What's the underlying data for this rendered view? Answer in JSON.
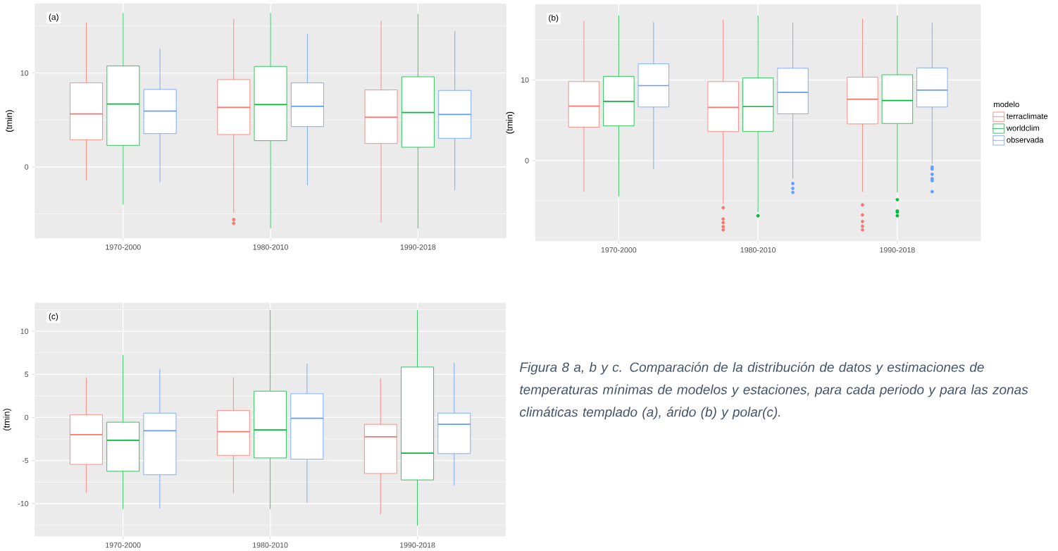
{
  "chart_data": [
    {
      "type": "box",
      "categories": [
        "1970-2000",
        "1980-2010",
        "1990-2018"
      ],
      "ylabel": "(tmin)",
      "ylim": [
        -7.6,
        17.4
      ],
      "yticks": [
        0,
        10
      ],
      "grid": true,
      "annotations": [
        "(a)"
      ],
      "series": [
        {
          "color": "#f8766d",
          "boxes": [
            {
              "low": -1.45,
              "q1": 2.9,
              "median": 5.65,
              "q3": 8.95,
              "high": 15.4
            },
            {
              "low": -4.9,
              "q1": 3.45,
              "median": 6.35,
              "q3": 9.3,
              "high": 15.75,
              "outliers": [
                -5.6,
                -6.0
              ]
            },
            {
              "low": -5.9,
              "q1": 2.5,
              "median": 5.3,
              "q3": 8.2,
              "high": 15.55
            }
          ]
        },
        {
          "color": "#00ba38",
          "boxes": [
            {
              "low": -4.0,
              "q1": 2.3,
              "median": 6.7,
              "q3": 10.75,
              "high": 16.4
            },
            {
              "low": -6.55,
              "q1": 2.8,
              "median": 6.65,
              "q3": 10.7,
              "high": 16.4
            },
            {
              "low": -6.55,
              "q1": 2.1,
              "median": 5.8,
              "q3": 9.6,
              "high": 16.3
            }
          ]
        },
        {
          "color": "#619cff",
          "boxes": [
            {
              "low": -1.65,
              "q1": 3.55,
              "median": 5.95,
              "q3": 8.25,
              "high": 12.6
            },
            {
              "low": -1.95,
              "q1": 4.3,
              "median": 6.45,
              "q3": 8.95,
              "high": 14.15
            },
            {
              "low": -2.5,
              "q1": 3.05,
              "median": 5.6,
              "q3": 8.15,
              "high": 14.45
            }
          ]
        }
      ]
    },
    {
      "type": "box",
      "categories": [
        "1970-2000",
        "1980-2010",
        "1990-2018"
      ],
      "ylabel": "(tmin)",
      "ylim": [
        -10,
        19.4
      ],
      "yticks": [
        0,
        10
      ],
      "grid": true,
      "annotations": [
        "(b)"
      ],
      "legend": "right",
      "legend_title": "modelo",
      "series": [
        {
          "name": "terraclimate",
          "color": "#f8766d",
          "boxes": [
            {
              "low": -3.9,
              "q1": 4.15,
              "median": 6.75,
              "q3": 9.8,
              "high": 17.3
            },
            {
              "low": -5.35,
              "q1": 3.6,
              "median": 6.6,
              "q3": 9.8,
              "high": 17.5,
              "outliers": [
                -5.85,
                -7.25,
                -7.7,
                -8.2,
                -8.6
              ]
            },
            {
              "low": -3.9,
              "q1": 4.55,
              "median": 7.6,
              "q3": 10.35,
              "high": 17.6,
              "outliers": [
                -5.5,
                -6.75,
                -7.55,
                -8.15,
                -8.6
              ]
            }
          ]
        },
        {
          "name": "worldclim",
          "color": "#00ba38",
          "boxes": [
            {
              "low": -4.45,
              "q1": 4.3,
              "median": 7.35,
              "q3": 10.45,
              "high": 18.0
            },
            {
              "low": -6.4,
              "q1": 3.6,
              "median": 6.7,
              "q3": 10.25,
              "high": 18.0,
              "outliers": [
                -6.85
              ]
            },
            {
              "low": -3.95,
              "q1": 4.6,
              "median": 7.45,
              "q3": 10.65,
              "high": 18.0,
              "outliers": [
                -4.85,
                -6.25,
                -6.4,
                -6.85
              ]
            }
          ]
        },
        {
          "name": "observada",
          "color": "#619cff",
          "boxes": [
            {
              "low": -1.1,
              "q1": 6.65,
              "median": 9.3,
              "q3": 12.0,
              "high": 17.2
            },
            {
              "low": -2.25,
              "q1": 5.8,
              "median": 8.45,
              "q3": 11.45,
              "high": 17.1,
              "outliers": [
                -2.85,
                -3.45,
                -3.95
              ]
            },
            {
              "low": -0.4,
              "q1": 6.65,
              "median": 8.75,
              "q3": 11.5,
              "high": 17.1,
              "outliers": [
                -0.8,
                -1.05,
                -1.7,
                -2.25,
                -2.5,
                -3.85
              ]
            }
          ]
        }
      ]
    },
    {
      "type": "box",
      "categories": [
        "1970-2000",
        "1980-2010",
        "1990-2018"
      ],
      "ylabel": "(tmin)",
      "ylim": [
        -13.8,
        13.3
      ],
      "yticks": [
        -10,
        -5,
        0,
        5,
        10
      ],
      "grid": true,
      "annotations": [
        "(c)",
        "*Figura 8 a, b y c. Comparación de la distribución de datos y estimaciones de temperaturas mínimas de modelos y estaciones, para cada periodo y para las zonas climáticas templado (a), árido (b) y polar(c).*"
      ],
      "series": [
        {
          "color": "#f8766d",
          "boxes": [
            {
              "low": -8.75,
              "q1": -5.45,
              "median": -2.0,
              "q3": 0.3,
              "high": 4.65
            },
            {
              "low": -8.85,
              "q1": -4.4,
              "median": -1.65,
              "q3": 0.8,
              "high": 4.65
            },
            {
              "low": -11.25,
              "q1": -6.5,
              "median": -2.25,
              "q3": -0.8,
              "high": 4.55
            }
          ]
        },
        {
          "color": "#00ba38",
          "boxes": [
            {
              "low": -10.65,
              "q1": -6.25,
              "median": -2.65,
              "q3": -0.55,
              "high": 7.25
            },
            {
              "low": -10.65,
              "q1": -4.7,
              "median": -1.45,
              "q3": 3.05,
              "high": 12.45
            },
            {
              "low": -12.55,
              "q1": -7.25,
              "median": -4.15,
              "q3": 5.85,
              "high": 12.45
            }
          ]
        },
        {
          "color": "#619cff",
          "boxes": [
            {
              "low": -10.55,
              "q1": -6.65,
              "median": -1.55,
              "q3": 0.5,
              "high": 5.65
            },
            {
              "low": -9.9,
              "q1": -4.85,
              "median": -0.1,
              "q3": 2.75,
              "high": 6.25
            },
            {
              "low": -7.9,
              "q1": -4.2,
              "median": -0.8,
              "q3": 0.5,
              "high": 6.35
            }
          ]
        }
      ]
    }
  ]
}
